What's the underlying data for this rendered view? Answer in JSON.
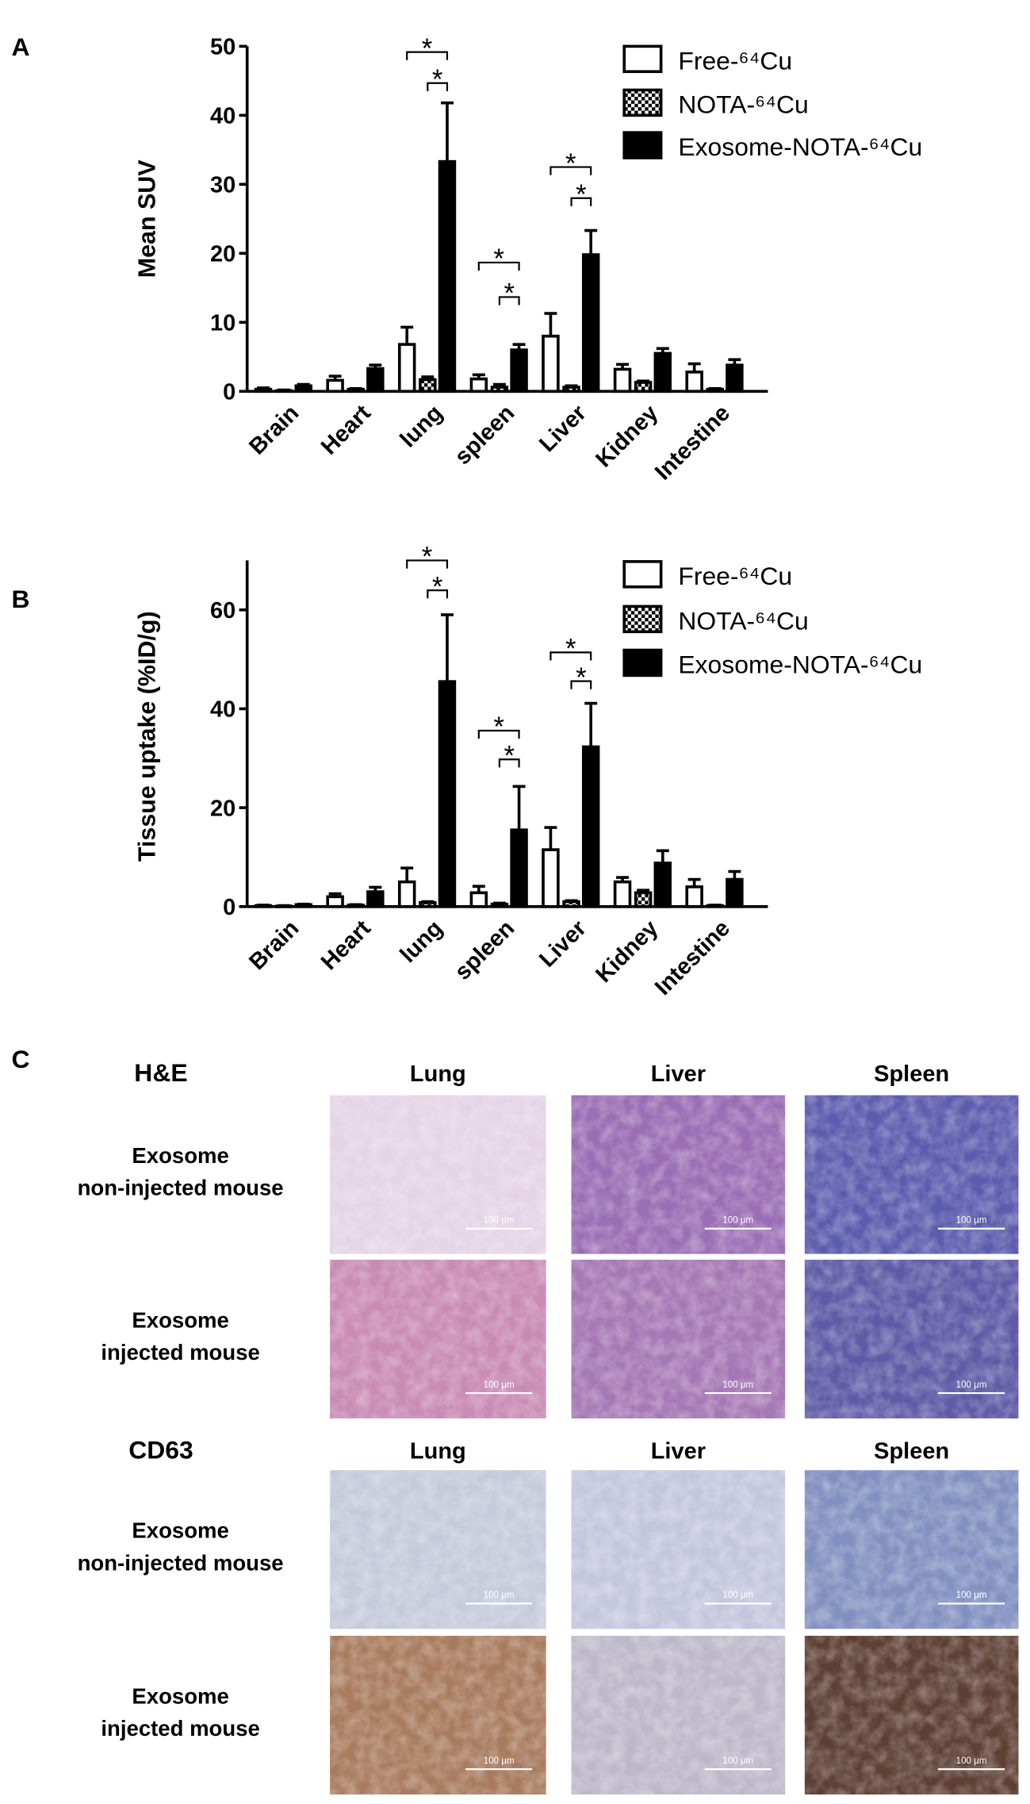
{
  "chart_data": [
    {
      "type": "bar",
      "panel_label": "A",
      "y_label": "Mean SUV",
      "categories": [
        "Brain",
        "Heart",
        "lung",
        "spleen",
        "Liver",
        "Kidney",
        "Intestine"
      ],
      "series": [
        {
          "name": "Free-⁶⁴Cu",
          "color": "#ffffff",
          "values": [
            0.3,
            1.6,
            6.8,
            1.8,
            8.0,
            3.2,
            2.8
          ],
          "errors": [
            0.2,
            0.6,
            2.5,
            0.6,
            3.3,
            0.7,
            1.2
          ]
        },
        {
          "name": "NOTA-⁶⁴Cu",
          "color": "#000000",
          "pattern": "checkerboard",
          "values": [
            0.1,
            0.3,
            1.7,
            0.6,
            0.6,
            1.3,
            0.3
          ],
          "errors": [
            0.1,
            0.1,
            0.4,
            0.4,
            0.2,
            0.2,
            0.1
          ]
        },
        {
          "name": "Exosome-NOTA-⁶⁴Cu",
          "color": "#000000",
          "values": [
            0.8,
            3.3,
            33.3,
            6.0,
            19.8,
            5.5,
            3.8
          ],
          "errors": [
            0.2,
            0.5,
            8.5,
            0.8,
            3.5,
            0.7,
            0.8
          ]
        }
      ],
      "ylim": [
        0,
        50
      ],
      "yticks": [
        0,
        10,
        20,
        30,
        40,
        50
      ],
      "legend": "upper right",
      "annotations": [
        {
          "text": "*",
          "category": "lung",
          "series": [
            "Free-⁶⁴Cu",
            "Exosome-NOTA-⁶⁴Cu"
          ]
        },
        {
          "text": "*",
          "category": "lung",
          "series": [
            "NOTA-⁶⁴Cu",
            "Exosome-NOTA-⁶⁴Cu"
          ]
        },
        {
          "text": "*",
          "category": "spleen",
          "series": [
            "Free-⁶⁴Cu",
            "Exosome-NOTA-⁶⁴Cu"
          ]
        },
        {
          "text": "*",
          "category": "spleen",
          "series": [
            "NOTA-⁶⁴Cu",
            "Exosome-NOTA-⁶⁴Cu"
          ]
        },
        {
          "text": "*",
          "category": "Liver",
          "series": [
            "Free-⁶⁴Cu",
            "Exosome-NOTA-⁶⁴Cu"
          ]
        },
        {
          "text": "*",
          "category": "Liver",
          "series": [
            "NOTA-⁶⁴Cu",
            "Exosome-NOTA-⁶⁴Cu"
          ]
        }
      ]
    },
    {
      "type": "bar",
      "panel_label": "B",
      "y_label": "Tissue uptake (%ID/g)",
      "categories": [
        "Brain",
        "Heart",
        "lung",
        "spleen",
        "Liver",
        "Kidney",
        "Intestine"
      ],
      "series": [
        {
          "name": "Free-⁶⁴Cu",
          "color": "#ffffff",
          "values": [
            0.2,
            2.0,
            5.0,
            2.8,
            11.5,
            5.0,
            4.0
          ],
          "errors": [
            0.1,
            0.6,
            2.8,
            1.3,
            4.5,
            0.9,
            1.5
          ]
        },
        {
          "name": "NOTA-⁶⁴Cu",
          "color": "#000000",
          "pattern": "checkerboard",
          "values": [
            0.1,
            0.3,
            0.8,
            0.5,
            1.0,
            2.8,
            0.2
          ],
          "errors": [
            0.1,
            0.1,
            0.2,
            0.2,
            0.2,
            0.5,
            0.1
          ]
        },
        {
          "name": "Exosome-NOTA-⁶⁴Cu",
          "color": "#000000",
          "values": [
            0.4,
            3.0,
            45.5,
            15.5,
            32.3,
            8.8,
            5.5
          ],
          "errors": [
            0.1,
            0.9,
            13.5,
            8.8,
            8.8,
            2.5,
            1.6
          ]
        }
      ],
      "ylim": [
        0,
        70
      ],
      "yticks": [
        0,
        20,
        40,
        60
      ],
      "legend": "upper right",
      "annotations": [
        {
          "text": "*",
          "category": "lung",
          "series": [
            "Free-⁶⁴Cu",
            "Exosome-NOTA-⁶⁴Cu"
          ]
        },
        {
          "text": "*",
          "category": "lung",
          "series": [
            "NOTA-⁶⁴Cu",
            "Exosome-NOTA-⁶⁴Cu"
          ]
        },
        {
          "text": "*",
          "category": "spleen",
          "series": [
            "Free-⁶⁴Cu",
            "Exosome-NOTA-⁶⁴Cu"
          ]
        },
        {
          "text": "*",
          "category": "spleen",
          "series": [
            "NOTA-⁶⁴Cu",
            "Exosome-NOTA-⁶⁴Cu"
          ]
        },
        {
          "text": "*",
          "category": "Liver",
          "series": [
            "Free-⁶⁴Cu",
            "Exosome-NOTA-⁶⁴Cu"
          ]
        },
        {
          "text": "*",
          "category": "Liver",
          "series": [
            "NOTA-⁶⁴Cu",
            "Exosome-NOTA-⁶⁴Cu"
          ]
        }
      ]
    }
  ],
  "panel_c": {
    "label": "C",
    "scale_bar": "100 μm",
    "sections": [
      {
        "stain": "H&E",
        "columns": [
          "Lung",
          "Liver",
          "Spleen"
        ],
        "rows": [
          [
            "Exosome",
            "non-injected mouse"
          ],
          [
            "Exosome",
            "injected mouse"
          ]
        ]
      },
      {
        "stain": "CD63",
        "columns": [
          "Lung",
          "Liver",
          "Spleen"
        ],
        "rows": [
          [
            "Exosome",
            "non-injected mouse"
          ],
          [
            "Exosome",
            "injected mouse"
          ]
        ]
      }
    ]
  }
}
